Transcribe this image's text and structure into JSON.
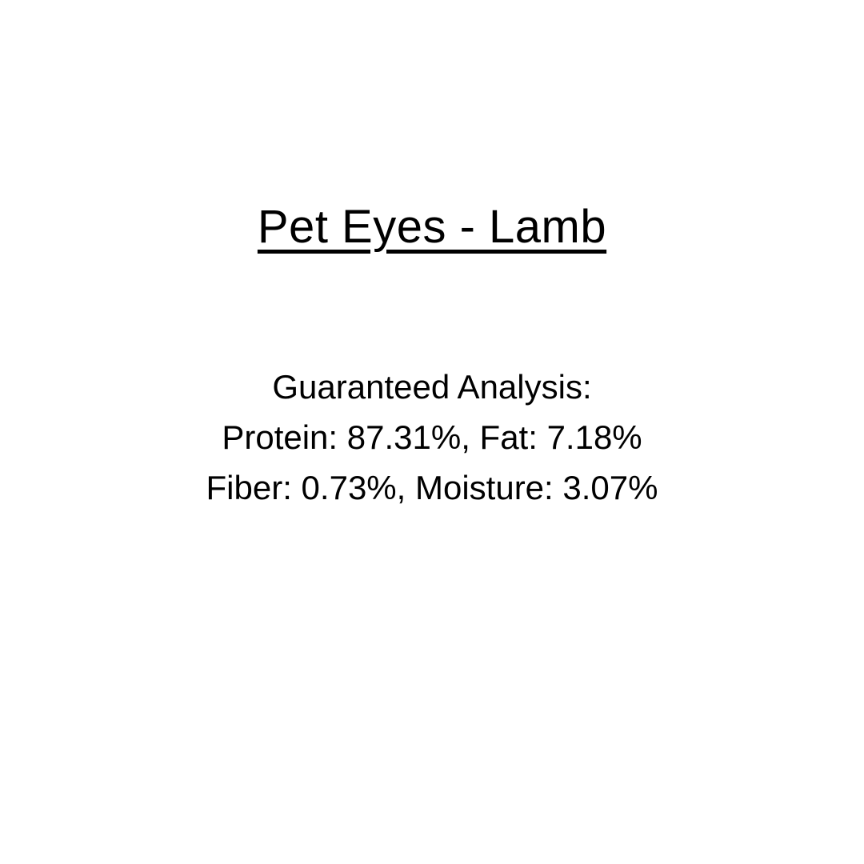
{
  "page": {
    "title": "Pet Eyes - Lamb",
    "analysis": {
      "heading": "Guaranteed Analysis:",
      "line_protein_fat": "Protein: 87.31%, Fat: 7.18%",
      "line_fiber_moisture": "Fiber: 0.73%, Moisture: 3.07%",
      "values": {
        "protein_pct": 87.31,
        "fat_pct": 7.18,
        "fiber_pct": 0.73,
        "moisture_pct": 3.07
      }
    },
    "colors": {
      "background": "#ffffff",
      "text": "#000000"
    }
  }
}
